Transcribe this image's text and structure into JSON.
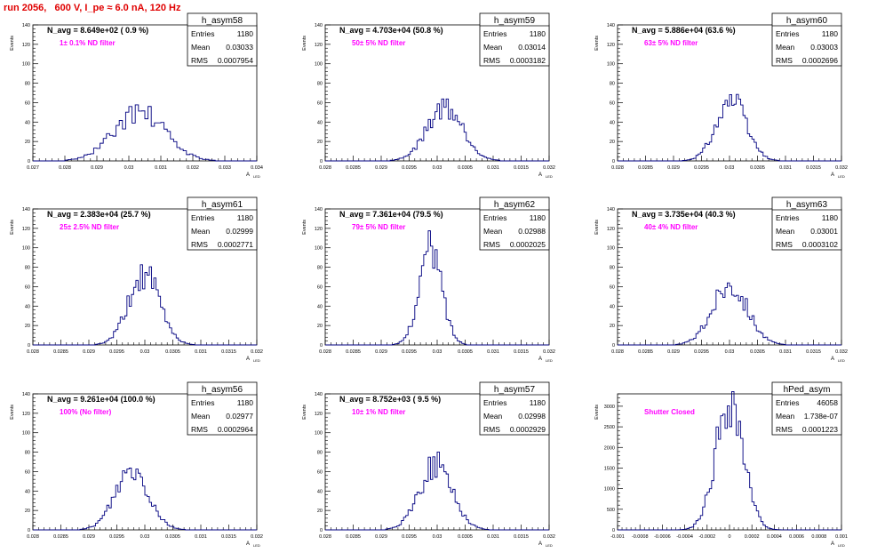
{
  "run_title": "run 2056,   600 V, I_pe ≈ 6.0 nA, 120 Hz",
  "common": {
    "y_axis_label": "Events",
    "x_axis_label": "A",
    "x_axis_sub": "LED",
    "stat_labels": [
      "Entries",
      "Mean",
      "RMS"
    ],
    "line_color": "#000080",
    "note_color": "#ff00ff"
  },
  "chart_data": [
    {
      "type": "bar",
      "title": "h_asym58",
      "navg": "N_avg = 8.649e+02 ( 0.9 %)",
      "note": "1± 0.1% ND filter",
      "entries": "1180",
      "mean": "0.03033",
      "rms": "0.0007954",
      "xlim": [
        0.027,
        0.034
      ],
      "ylim": [
        0,
        140
      ],
      "xticks": [
        "0.027",
        "0.028",
        "0.029",
        "0.03",
        "0.031",
        "0.032",
        "0.033",
        "0.034"
      ],
      "yticks": [
        "0",
        "20",
        "40",
        "60",
        "80",
        "100",
        "120",
        "140"
      ],
      "dist": {
        "mean": 0.03033,
        "sigma": 0.0007954,
        "peak": 50,
        "bins": 70,
        "seed": 58
      }
    },
    {
      "type": "bar",
      "title": "h_asym59",
      "navg": "N_avg = 4.703e+04 (50.8 %)",
      "note": "50± 5% ND filter",
      "entries": "1180",
      "mean": "0.03014",
      "rms": "0.0003182",
      "xlim": [
        0.028,
        0.032
      ],
      "ylim": [
        0,
        140
      ],
      "xticks": [
        "0.028",
        "0.0285",
        "0.029",
        "0.0295",
        "0.03",
        "0.0305",
        "0.031",
        "0.0315",
        "0.032"
      ],
      "yticks": [
        "0",
        "20",
        "40",
        "60",
        "80",
        "100",
        "120",
        "140"
      ],
      "dist": {
        "mean": 0.03014,
        "sigma": 0.0003182,
        "peak": 56,
        "bins": 100,
        "seed": 59
      }
    },
    {
      "type": "bar",
      "title": "h_asym60",
      "navg": "N_avg = 5.886e+04 (63.6 %)",
      "note": "63± 5% ND filter",
      "entries": "1180",
      "mean": "0.03003",
      "rms": "0.0002696",
      "xlim": [
        0.028,
        0.032
      ],
      "ylim": [
        0,
        140
      ],
      "xticks": [
        "0.028",
        "0.0285",
        "0.029",
        "0.0295",
        "0.03",
        "0.0305",
        "0.031",
        "0.0315",
        "0.032"
      ],
      "yticks": [
        "0",
        "20",
        "40",
        "60",
        "80",
        "100",
        "120",
        "140"
      ],
      "dist": {
        "mean": 0.03003,
        "sigma": 0.0002696,
        "peak": 63,
        "bins": 100,
        "seed": 60
      }
    },
    {
      "type": "bar",
      "title": "h_asym61",
      "navg": "N_avg = 2.383e+04 (25.7 %)",
      "note": "25± 2.5% ND filter",
      "entries": "1180",
      "mean": "0.02999",
      "rms": "0.0002771",
      "xlim": [
        0.028,
        0.032
      ],
      "ylim": [
        0,
        140
      ],
      "xticks": [
        "0.028",
        "0.0285",
        "0.029",
        "0.0295",
        "0.03",
        "0.0305",
        "0.031",
        "0.0315",
        "0.032"
      ],
      "yticks": [
        "0",
        "20",
        "40",
        "60",
        "80",
        "100",
        "120",
        "140"
      ],
      "dist": {
        "mean": 0.02999,
        "sigma": 0.0002771,
        "peak": 72,
        "bins": 100,
        "seed": 61
      }
    },
    {
      "type": "bar",
      "title": "h_asym62",
      "navg": "N_avg = 7.361e+04 (79.5 %)",
      "note": "79± 5% ND filter",
      "entries": "1180",
      "mean": "0.02988",
      "rms": "0.0002025",
      "xlim": [
        0.028,
        0.032
      ],
      "ylim": [
        0,
        140
      ],
      "xticks": [
        "0.028",
        "0.0285",
        "0.029",
        "0.0295",
        "0.03",
        "0.0305",
        "0.031",
        "0.0315",
        "0.032"
      ],
      "yticks": [
        "0",
        "20",
        "40",
        "60",
        "80",
        "100",
        "120",
        "140"
      ],
      "dist": {
        "mean": 0.02988,
        "sigma": 0.0002025,
        "peak": 98,
        "bins": 100,
        "seed": 62
      }
    },
    {
      "type": "bar",
      "title": "h_asym63",
      "navg": "N_avg = 3.735e+04 (40.3 %)",
      "note": "40± 4% ND filter",
      "entries": "1180",
      "mean": "0.03001",
      "rms": "0.0003102",
      "xlim": [
        0.028,
        0.032
      ],
      "ylim": [
        0,
        140
      ],
      "xticks": [
        "0.028",
        "0.0285",
        "0.029",
        "0.0295",
        "0.03",
        "0.0305",
        "0.031",
        "0.0315",
        "0.032"
      ],
      "yticks": [
        "0",
        "20",
        "40",
        "60",
        "80",
        "100",
        "120",
        "140"
      ],
      "dist": {
        "mean": 0.03001,
        "sigma": 0.0003102,
        "peak": 63,
        "bins": 100,
        "seed": 63
      }
    },
    {
      "type": "bar",
      "title": "h_asym56",
      "navg": "N_avg = 9.261e+04 (100.0 %)",
      "note": "100% (No filter)",
      "entries": "1180",
      "mean": "0.02977",
      "rms": "0.0002964",
      "xlim": [
        0.028,
        0.032
      ],
      "ylim": [
        0,
        140
      ],
      "xticks": [
        "0.028",
        "0.0285",
        "0.029",
        "0.0295",
        "0.03",
        "0.0305",
        "0.031",
        "0.0315",
        "0.032"
      ],
      "yticks": [
        "0",
        "20",
        "40",
        "60",
        "80",
        "100",
        "120",
        "140"
      ],
      "dist": {
        "mean": 0.02977,
        "sigma": 0.0002964,
        "peak": 63,
        "bins": 100,
        "seed": 56
      }
    },
    {
      "type": "bar",
      "title": "h_asym57",
      "navg": "N_avg = 8.752e+03 ( 9.5 %)",
      "note": "10± 1% ND filter",
      "entries": "1180",
      "mean": "0.02998",
      "rms": "0.0002929",
      "xlim": [
        0.028,
        0.032
      ],
      "ylim": [
        0,
        140
      ],
      "xticks": [
        "0.028",
        "0.0285",
        "0.029",
        "0.0295",
        "0.03",
        "0.0305",
        "0.031",
        "0.0315",
        "0.032"
      ],
      "yticks": [
        "0",
        "20",
        "40",
        "60",
        "80",
        "100",
        "120",
        "140"
      ],
      "dist": {
        "mean": 0.02998,
        "sigma": 0.0002929,
        "peak": 67,
        "bins": 100,
        "seed": 57
      }
    },
    {
      "type": "bar",
      "title": "hPed_asym",
      "navg": "",
      "note": "Shutter Closed",
      "entries": "46058",
      "mean": "1.738e-07",
      "rms": "0.0001223",
      "xlim": [
        -0.001,
        0.001
      ],
      "ylim": [
        0,
        3300
      ],
      "xticks": [
        "-0.001",
        "-0.0008",
        "-0.0006",
        "-0.0004",
        "-0.0002",
        "0",
        "0.0002",
        "0.0004",
        "0.0006",
        "0.0008",
        "0.001"
      ],
      "yticks": [
        "0",
        "500",
        "1000",
        "1500",
        "2000",
        "2500",
        "3000"
      ],
      "dist": {
        "mean": 1.738e-07,
        "sigma": 0.0001223,
        "peak": 3150,
        "bins": 100,
        "seed": 99
      }
    }
  ]
}
